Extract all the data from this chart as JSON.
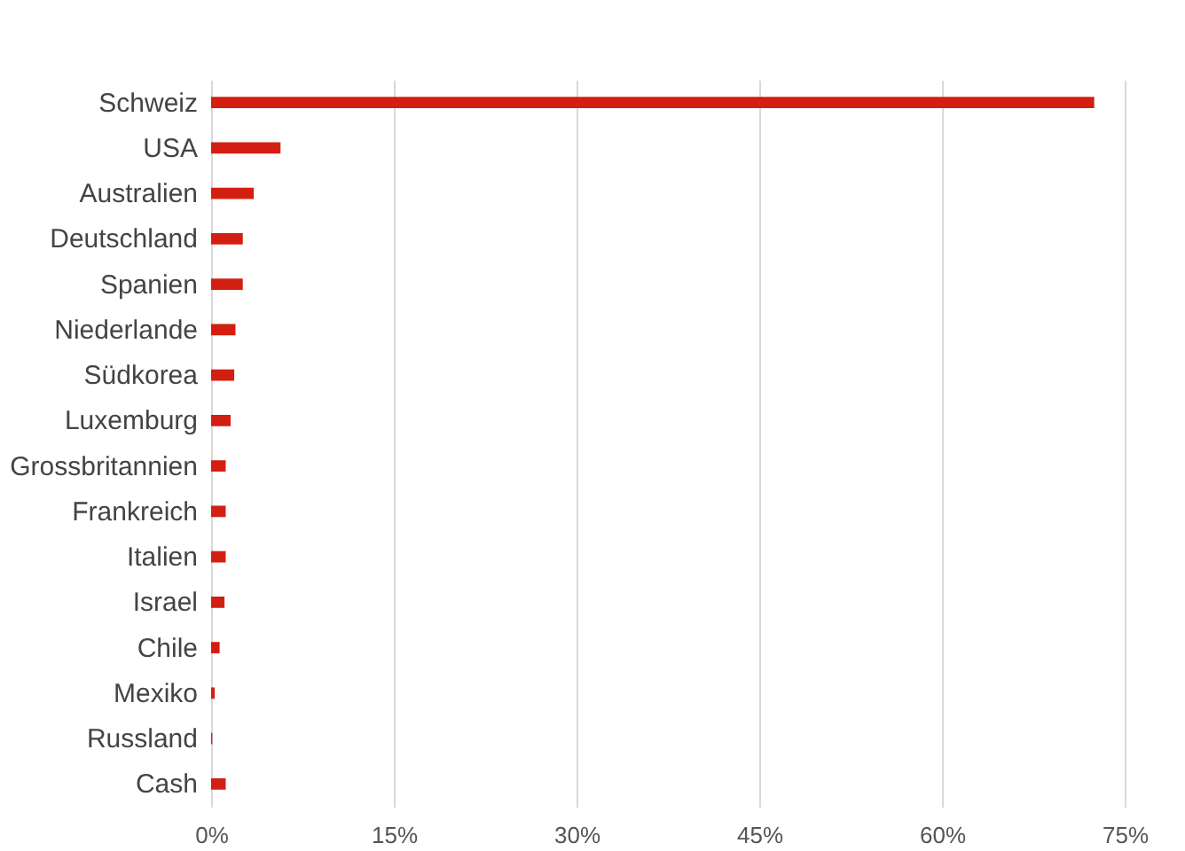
{
  "chart_data": {
    "type": "bar",
    "orientation": "horizontal",
    "categories": [
      "Schweiz",
      "USA",
      "Australien",
      "Deutschland",
      "Spanien",
      "Niederlande",
      "Südkorea",
      "Luxemburg",
      "Grossbritannien",
      "Frankreich",
      "Italien",
      "Israel",
      "Chile",
      "Mexiko",
      "Russland",
      "Cash"
    ],
    "series": [
      {
        "color": "#d31f11",
        "values": [
          72.5,
          5.7,
          3.5,
          2.6,
          2.6,
          2.0,
          1.9,
          1.6,
          1.2,
          1.2,
          1.2,
          1.1,
          0.7,
          0.3,
          0.1,
          1.2
        ]
      }
    ],
    "xlim": [
      0,
      75
    ],
    "xticks": [
      {
        "value": 0,
        "label": "0%"
      },
      {
        "value": 15,
        "label": "15%"
      },
      {
        "value": 30,
        "label": "30%"
      },
      {
        "value": 45,
        "label": "45%"
      },
      {
        "value": 60,
        "label": "60%"
      },
      {
        "value": 75,
        "label": "75%"
      }
    ],
    "grid": "x"
  }
}
